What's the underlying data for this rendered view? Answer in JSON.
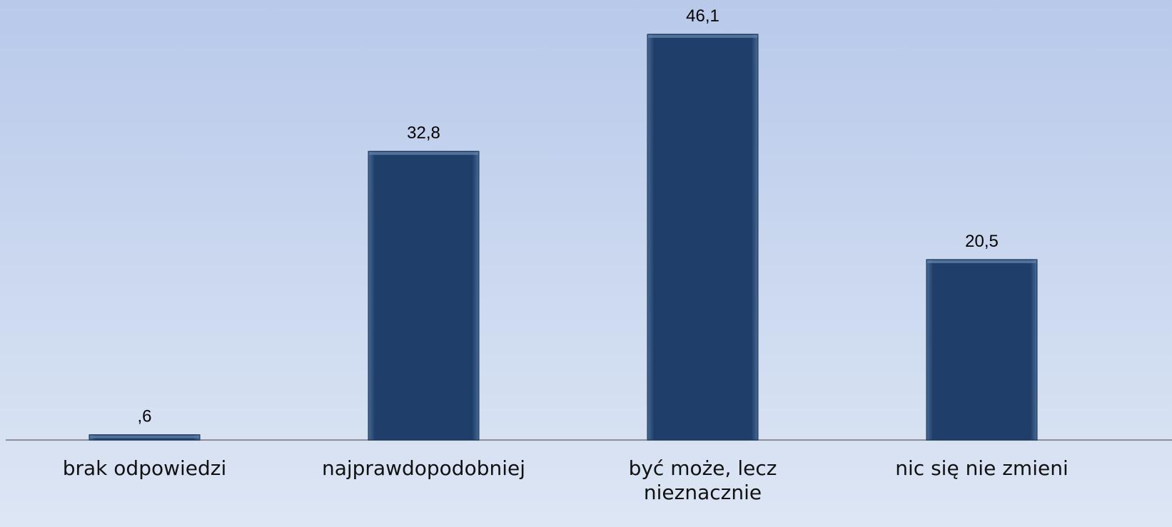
{
  "chart_data": {
    "type": "bar",
    "categories": [
      "brak odpowiedzi",
      "najprawdopodobniej",
      "być może, lecz nieznacznie",
      "nic się nie zmieni"
    ],
    "values": [
      0.6,
      32.8,
      46.1,
      20.5
    ],
    "value_labels": [
      ",6",
      "32,8",
      "46,1",
      "20,5"
    ],
    "color": "#1f3f6a"
  }
}
